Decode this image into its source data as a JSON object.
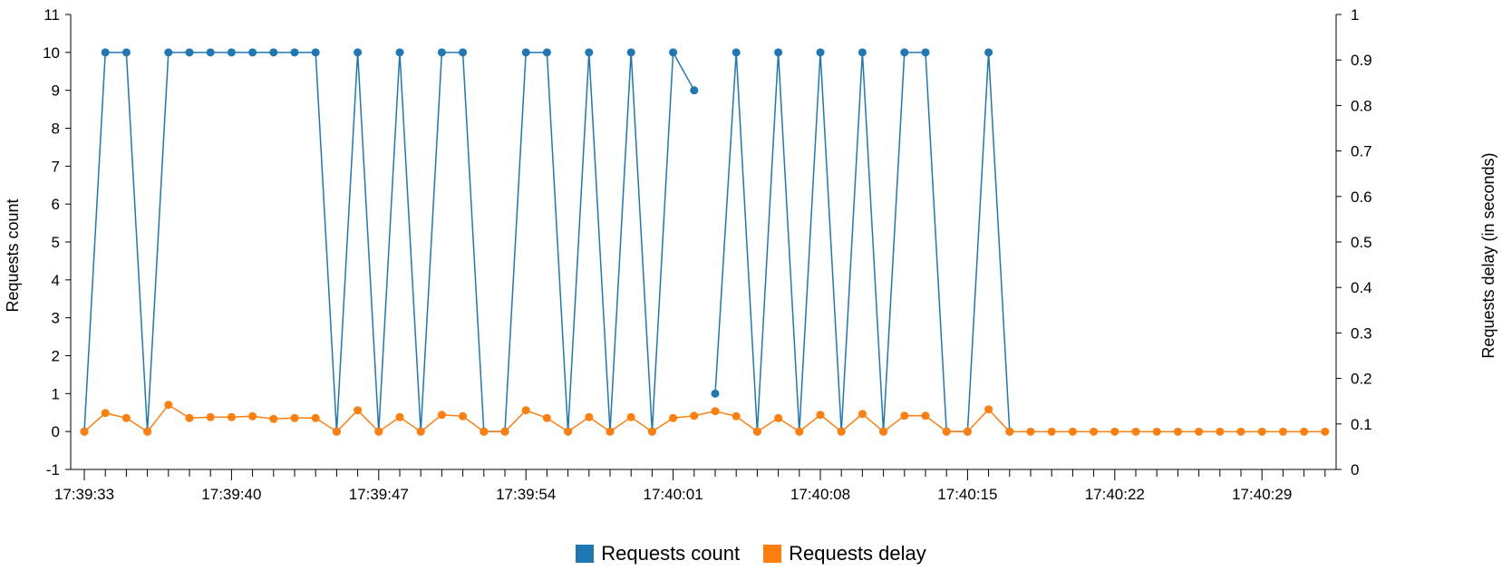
{
  "chart_data": {
    "type": "line",
    "y_left_label": "Requests count",
    "y_right_label": "Requests delay (in seconds)",
    "y_left_range": [
      -1,
      11
    ],
    "y_right_range": [
      0,
      1
    ],
    "y_left_ticks": [
      -1,
      0,
      1,
      2,
      3,
      4,
      5,
      6,
      7,
      8,
      9,
      10,
      11
    ],
    "y_right_ticks": [
      0,
      0.1,
      0.2,
      0.3,
      0.4,
      0.5,
      0.6,
      0.7,
      0.8,
      0.9,
      1
    ],
    "x_tick_labels": [
      "17:39:33",
      "17:39:40",
      "17:39:47",
      "17:39:54",
      "17:40:01",
      "17:40:08",
      "17:40:15",
      "17:40:22",
      "17:40:29"
    ],
    "x_tick_label_every": 7,
    "x_tick_count": 60,
    "series": [
      {
        "name": "Requests count",
        "color": "#1f77b4",
        "axis": "left",
        "values": [
          0,
          10,
          10,
          0,
          10,
          10,
          10,
          10,
          10,
          10,
          10,
          10,
          0,
          10,
          0,
          10,
          0,
          10,
          10,
          0,
          0,
          10,
          10,
          0,
          10,
          0,
          10,
          0,
          10,
          9,
          1,
          10,
          0,
          10,
          0,
          10,
          0,
          10,
          0,
          10,
          10,
          0,
          0,
          10,
          0,
          null,
          null,
          null,
          null,
          null,
          null,
          null,
          null,
          null,
          null,
          null,
          null,
          null,
          null,
          null
        ]
      },
      {
        "name": "Requests delay",
        "color": "#ff7f0e",
        "axis": "right",
        "values": [
          0.083,
          0.124,
          0.113,
          0.083,
          0.142,
          0.113,
          0.115,
          0.115,
          0.117,
          0.111,
          0.113,
          0.113,
          0.083,
          0.13,
          0.083,
          0.115,
          0.083,
          0.12,
          0.117,
          0.083,
          0.083,
          0.13,
          0.113,
          0.083,
          0.115,
          0.083,
          0.115,
          0.083,
          0.113,
          0.118,
          0.128,
          0.117,
          0.083,
          0.113,
          0.083,
          0.12,
          0.083,
          0.122,
          0.083,
          0.118,
          0.118,
          0.083,
          0.083,
          0.132,
          0.083,
          0.083,
          0.083,
          0.083,
          0.083,
          0.083,
          0.083,
          0.083,
          0.083,
          0.083,
          0.083,
          0.083,
          0.083,
          0.083,
          0.083,
          0.083
        ]
      }
    ]
  },
  "legend": {
    "count_label": "Requests count",
    "delay_label": "Requests delay"
  }
}
